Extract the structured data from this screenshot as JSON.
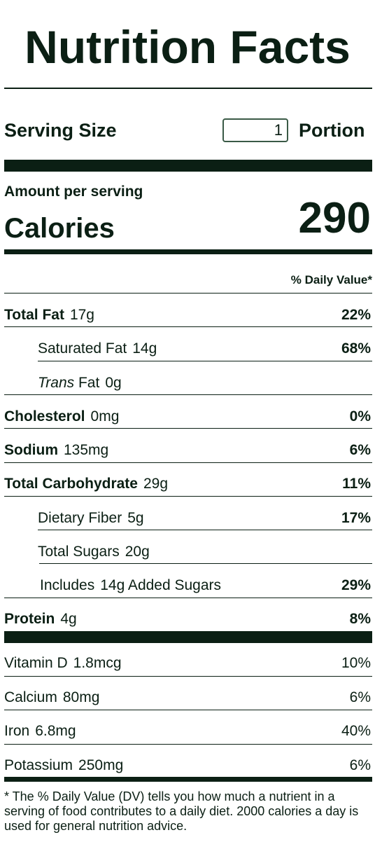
{
  "title": "Nutrition Facts",
  "serving": {
    "label": "Serving Size",
    "value": "1",
    "unit": "Portion"
  },
  "amount_per_serving": "Amount per serving",
  "calories": {
    "label": "Calories",
    "value": "290"
  },
  "daily_value_header": "% Daily Value*",
  "nutrients": [
    {
      "name": "Total Fat",
      "amount": "17g",
      "dv": "22%"
    },
    {
      "name": "Saturated Fat",
      "amount": "14g",
      "dv": "68%"
    },
    {
      "name_italic": "Trans",
      "name": "Fat",
      "amount": "0g",
      "dv": ""
    },
    {
      "name": "Cholesterol",
      "amount": "0mg",
      "dv": "0%"
    },
    {
      "name": "Sodium",
      "amount": "135mg",
      "dv": "6%"
    },
    {
      "name": "Total Carbohydrate",
      "amount": "29g",
      "dv": "11%"
    },
    {
      "name": "Dietary Fiber",
      "amount": "5g",
      "dv": "17%"
    },
    {
      "name": "Total Sugars",
      "amount": "20g",
      "dv": ""
    },
    {
      "name": "Includes",
      "amount": "14g Added Sugars",
      "dv": "29%"
    },
    {
      "name": "Protein",
      "amount": "4g",
      "dv": "8%"
    }
  ],
  "vitamins": [
    {
      "name": "Vitamin D",
      "amount": "1.8mcg",
      "dv": "10%"
    },
    {
      "name": "Calcium",
      "amount": "80mg",
      "dv": "6%"
    },
    {
      "name": "Iron",
      "amount": "6.8mg",
      "dv": "40%"
    },
    {
      "name": "Potassium",
      "amount": "250mg",
      "dv": "6%"
    }
  ],
  "footnote": "* The % Daily Value (DV) tells you how much a nutrient in a serving of food contributes to a daily diet. 2000 calories a day is used for general nutrition advice.",
  "colors": {
    "text": "#0b1f14",
    "input_border": "#3a5a46",
    "background": "#ffffff"
  }
}
